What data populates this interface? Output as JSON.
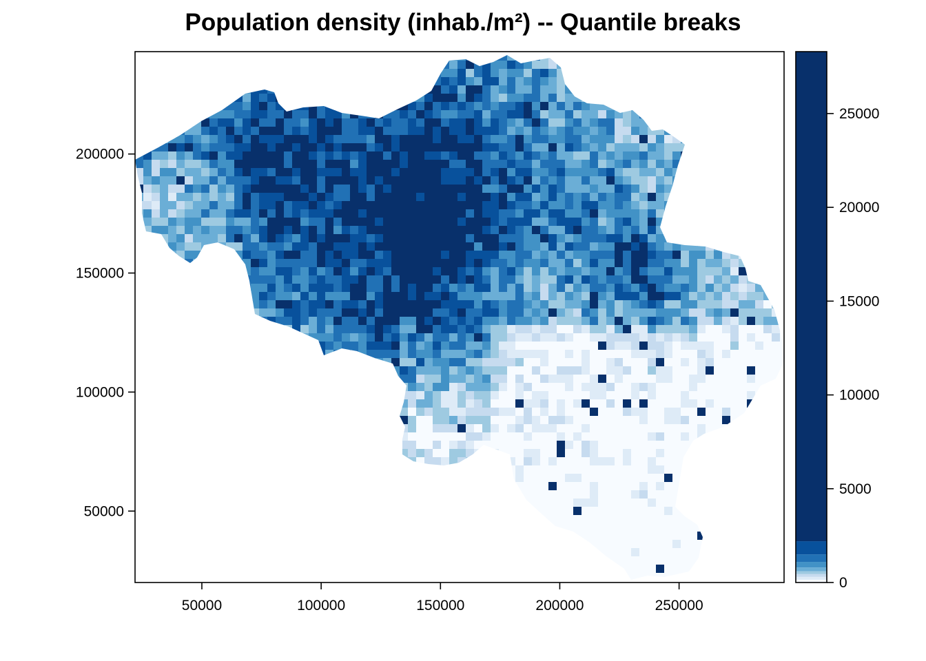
{
  "title": "Population density (inhab./m²) -- Quantile breaks",
  "map": {
    "type": "choropleth",
    "region": "Belgium",
    "palette": [
      "#f7fbff",
      "#deebf7",
      "#c6dbef",
      "#9ecae1",
      "#6baed6",
      "#4292c6",
      "#2171b5",
      "#08519c",
      "#08306b"
    ],
    "xlim": [
      22000,
      294000
    ],
    "ylim": [
      20000,
      243000
    ],
    "x_ticks": [
      {
        "value": 50000,
        "label": "50000"
      },
      {
        "value": 100000,
        "label": "100000"
      },
      {
        "value": 150000,
        "label": "150000"
      },
      {
        "value": 200000,
        "label": "200000"
      },
      {
        "value": 250000,
        "label": "250000"
      }
    ],
    "y_ticks": [
      {
        "value": 50000,
        "label": "50000"
      },
      {
        "value": 100000,
        "label": "100000"
      },
      {
        "value": 150000,
        "label": "150000"
      },
      {
        "value": 200000,
        "label": "200000"
      }
    ]
  },
  "legend": {
    "type": "colorbar",
    "range": [
      0,
      28300
    ],
    "ticks": [
      {
        "value": 0,
        "label": "0"
      },
      {
        "value": 5000,
        "label": "5000"
      },
      {
        "value": 10000,
        "label": "10000"
      },
      {
        "value": 15000,
        "label": "15000"
      },
      {
        "value": 20000,
        "label": "20000"
      },
      {
        "value": 25000,
        "label": "25000"
      }
    ],
    "breaks": [
      0,
      150,
      300,
      450,
      600,
      800,
      1100,
      1500,
      2200,
      28300
    ],
    "colors": [
      "#f7fbff",
      "#deebf7",
      "#c6dbef",
      "#9ecae1",
      "#6baed6",
      "#4292c6",
      "#2171b5",
      "#08519c",
      "#08306b"
    ]
  }
}
